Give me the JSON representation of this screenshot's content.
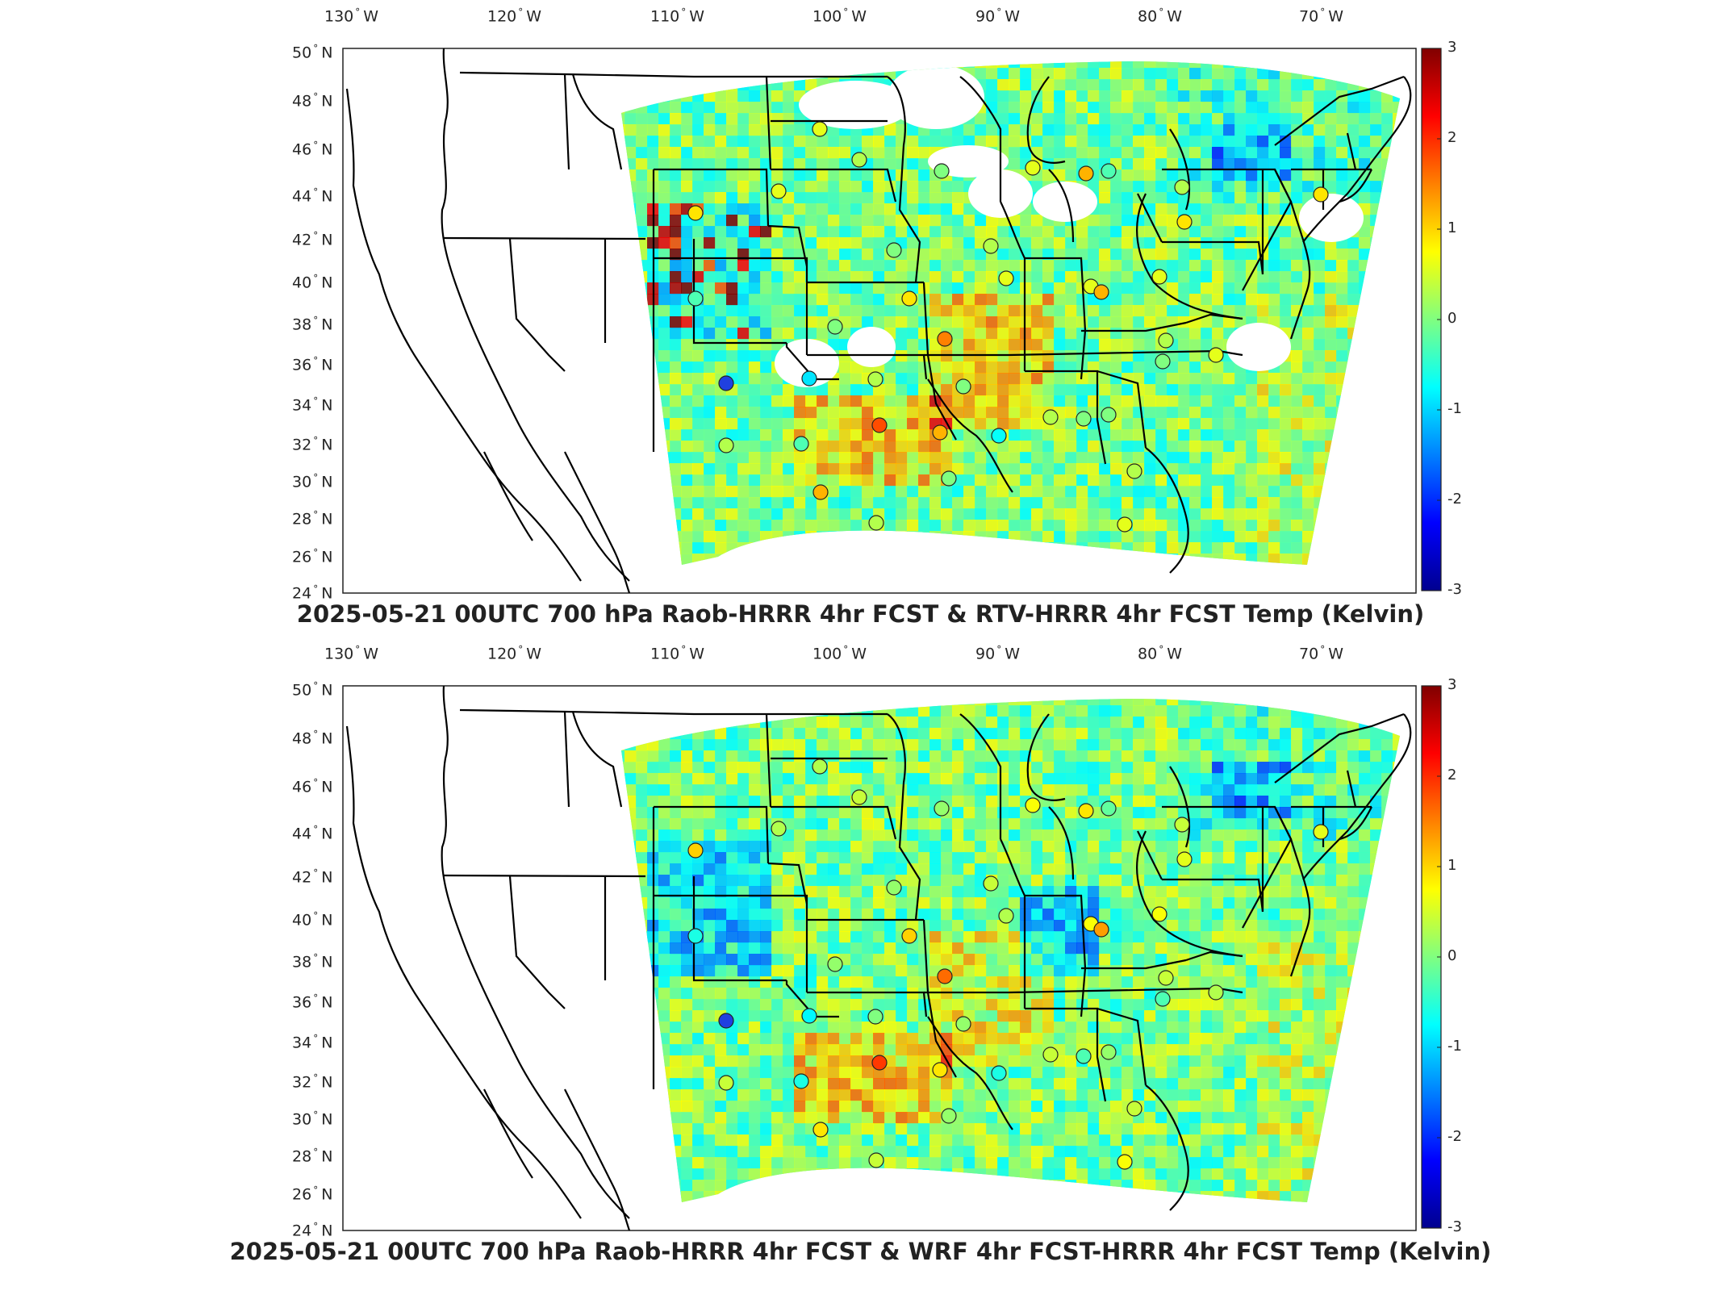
{
  "panels": [
    {
      "id": "top",
      "title": "2025-05-21 00UTC 700 hPa Raob-HRRR 4hr FCST & RTV-HRRR 4hr FCST Temp (Kelvin)",
      "variant": "rtv"
    },
    {
      "id": "bottom",
      "title": "2025-05-21 00UTC 700 hPa Raob-HRRR 4hr FCST & WRF 4hr FCST-HRRR 4hr FCST Temp (Kelvin)",
      "variant": "wrf"
    }
  ],
  "lon_labels": [
    {
      "v": "130",
      "h": "W"
    },
    {
      "v": "120",
      "h": "W"
    },
    {
      "v": "110",
      "h": "W"
    },
    {
      "v": "100",
      "h": "W"
    },
    {
      "v": "90",
      "h": "W"
    },
    {
      "v": "80",
      "h": "W"
    },
    {
      "v": "70",
      "h": "W"
    }
  ],
  "lat_labels": [
    {
      "v": "50",
      "h": "N"
    },
    {
      "v": "48",
      "h": "N"
    },
    {
      "v": "46",
      "h": "N"
    },
    {
      "v": "44",
      "h": "N"
    },
    {
      "v": "42",
      "h": "N"
    },
    {
      "v": "40",
      "h": "N"
    },
    {
      "v": "38",
      "h": "N"
    },
    {
      "v": "36",
      "h": "N"
    },
    {
      "v": "34",
      "h": "N"
    },
    {
      "v": "32",
      "h": "N"
    },
    {
      "v": "30",
      "h": "N"
    },
    {
      "v": "28",
      "h": "N"
    },
    {
      "v": "26",
      "h": "N"
    },
    {
      "v": "24",
      "h": "N"
    }
  ],
  "colorbar": {
    "ticks": [
      "3",
      "2",
      "1",
      "0",
      "-1",
      "-2",
      "-3"
    ],
    "range": [
      -3,
      3
    ],
    "colormap": "jet",
    "colors": [
      "#00008f",
      "#0000ff",
      "#0080ff",
      "#00ffff",
      "#80ff80",
      "#ffff00",
      "#ff8000",
      "#ff0000",
      "#800000"
    ]
  },
  "map": {
    "land_fill": "#ffffff",
    "border_color": "#000000",
    "marker_style": "circle-outline"
  }
}
